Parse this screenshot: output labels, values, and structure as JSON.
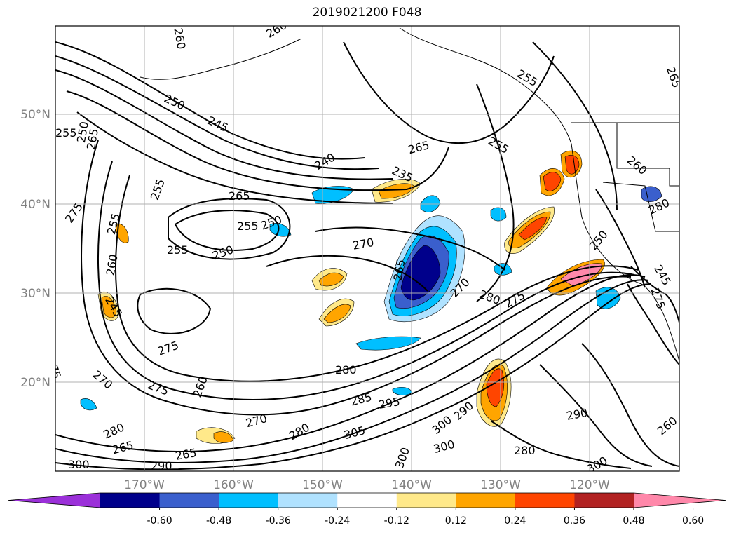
{
  "title": "2019021200 F048",
  "map": {
    "lat_labels": [
      "50°N",
      "40°N",
      "30°N",
      "20°N"
    ],
    "lon_labels": [
      "170°W",
      "160°W",
      "150°W",
      "140°W",
      "130°W",
      "120°W"
    ]
  },
  "contour_labels": [
    "260",
    "260",
    "265",
    "255",
    "250",
    "265",
    "245",
    "250",
    "255",
    "240",
    "265",
    "235",
    "255",
    "260",
    "280",
    "275",
    "255",
    "265",
    "250",
    "255",
    "250",
    "270",
    "255",
    "260",
    "265",
    "270",
    "245",
    "250",
    "280",
    "275",
    "275",
    "245",
    "275",
    "280",
    "275",
    "270",
    "260",
    "275",
    "280",
    "285",
    "295",
    "305",
    "300",
    "300",
    "280",
    "290",
    "300",
    "290",
    "280",
    "270",
    "265",
    "265",
    "300",
    "290",
    "300",
    "260",
    "255"
  ],
  "colorbar": {
    "levels": [
      "-0.60",
      "-0.48",
      "-0.36",
      "-0.24",
      "-0.12",
      "0.12",
      "0.24",
      "0.36",
      "0.48",
      "0.60"
    ],
    "colors": [
      "#9b30d9",
      "#00008b",
      "#3a5fcd",
      "#00bfff",
      "#b0e2ff",
      "#ffffff",
      "#ffe98a",
      "#ffa500",
      "#ff4500",
      "#b22222",
      "#ff88aa"
    ]
  }
}
